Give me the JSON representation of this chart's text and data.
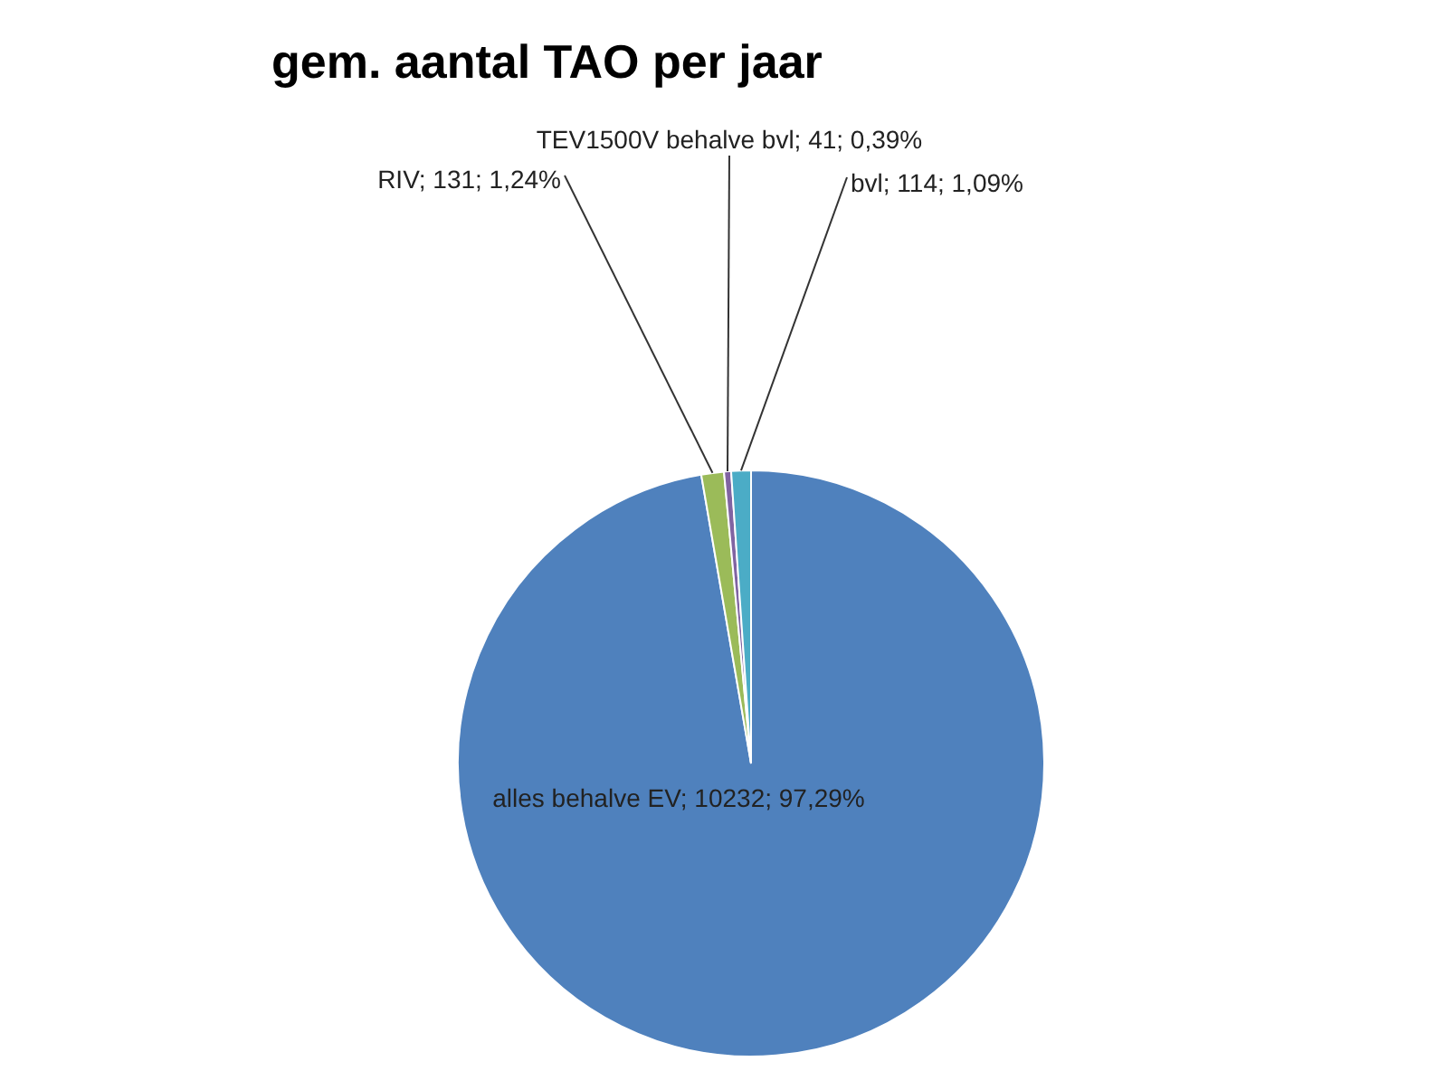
{
  "chart_data": {
    "type": "pie",
    "title": "gem. aantal TAO per jaar",
    "categories": [
      "alles behalve EV",
      "RIV",
      "TEV1500V behalve bvl",
      "bvl"
    ],
    "values": [
      10232,
      131,
      41,
      114
    ],
    "colors": [
      "#4f81bd",
      "#9bbb59",
      "#8064a2",
      "#4bacc6"
    ],
    "value_labels": [
      "10232; 97,29%",
      "131; 1,24%",
      "41; 0,39%",
      "114; 1,09%"
    ]
  }
}
